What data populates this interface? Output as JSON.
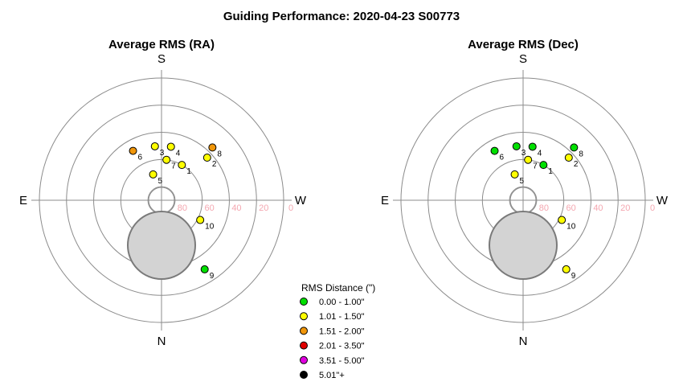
{
  "title": "Guiding Performance: 2020-04-23 S00773",
  "chart_data": [
    {
      "type": "scatter",
      "projection": "polar-alt-az",
      "title": "Average RMS (RA)",
      "directions": {
        "top": "S",
        "bottom": "N",
        "left": "E",
        "right": "W"
      },
      "altitude_labels": [
        "80",
        "60",
        "40",
        "20",
        "0"
      ],
      "rings_altitude": [
        80,
        60,
        40,
        20,
        0
      ],
      "points": [
        {
          "label": "1",
          "az": 330,
          "alt": 60,
          "color": "#ffff00"
        },
        {
          "label": "2",
          "az": 313,
          "alt": 44,
          "color": "#ffff00"
        },
        {
          "label": "3",
          "az": 7,
          "alt": 50,
          "color": "#ffff00"
        },
        {
          "label": "4",
          "az": 350,
          "alt": 50,
          "color": "#ffff00"
        },
        {
          "label": "5",
          "az": 18,
          "alt": 70,
          "color": "#ffff00"
        },
        {
          "label": "6",
          "az": 30,
          "alt": 48,
          "color": "#f0960a"
        },
        {
          "label": "7",
          "az": 353,
          "alt": 60,
          "color": "#ffff00"
        },
        {
          "label": "8",
          "az": 316,
          "alt": 36,
          "color": "#f0960a"
        },
        {
          "label": "9",
          "az": 212,
          "alt": 30,
          "color": "#00e000"
        },
        {
          "label": "10",
          "az": 243,
          "alt": 58,
          "color": "#ffff00"
        }
      ]
    },
    {
      "type": "scatter",
      "projection": "polar-alt-az",
      "title": "Average RMS (Dec)",
      "directions": {
        "top": "S",
        "bottom": "N",
        "left": "E",
        "right": "W"
      },
      "altitude_labels": [
        "80",
        "60",
        "40",
        "20",
        "0"
      ],
      "rings_altitude": [
        80,
        60,
        40,
        20,
        0
      ],
      "points": [
        {
          "label": "1",
          "az": 330,
          "alt": 60,
          "color": "#00e000"
        },
        {
          "label": "2",
          "az": 313,
          "alt": 44,
          "color": "#ffff00"
        },
        {
          "label": "3",
          "az": 7,
          "alt": 50,
          "color": "#00e000"
        },
        {
          "label": "4",
          "az": 350,
          "alt": 50,
          "color": "#00e000"
        },
        {
          "label": "5",
          "az": 18,
          "alt": 70,
          "color": "#ffff00"
        },
        {
          "label": "6",
          "az": 30,
          "alt": 48,
          "color": "#00e000"
        },
        {
          "label": "7",
          "az": 353,
          "alt": 60,
          "color": "#ffff00"
        },
        {
          "label": "8",
          "az": 316,
          "alt": 36,
          "color": "#00e000"
        },
        {
          "label": "9",
          "az": 212,
          "alt": 30,
          "color": "#ffff00"
        },
        {
          "label": "10",
          "az": 243,
          "alt": 58,
          "color": "#ffff00"
        }
      ]
    }
  ],
  "legend": {
    "title": "RMS Distance (\")",
    "items": [
      {
        "label": "0.00 - 1.00\"",
        "color": "#00e000"
      },
      {
        "label": "1.01 - 1.50\"",
        "color": "#ffff00"
      },
      {
        "label": "1.51 - 2.00\"",
        "color": "#f0960a"
      },
      {
        "label": "2.01 - 3.50\"",
        "color": "#e00000"
      },
      {
        "label": "3.51 - 5.00\"",
        "color": "#e000e0"
      },
      {
        "label": "5.01\"+",
        "color": "#000000"
      }
    ]
  }
}
